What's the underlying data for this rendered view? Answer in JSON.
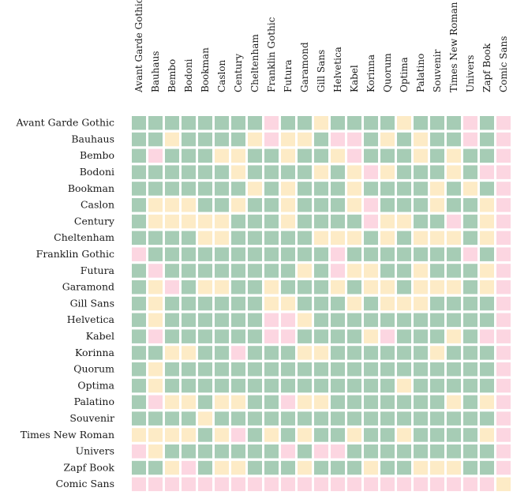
{
  "chart_data": {
    "type": "heatmap",
    "title": "",
    "xlabel": "",
    "ylabel": "",
    "fonts": [
      "Avant Garde Gothic",
      "Bauhaus",
      "Bembo",
      "Bodoni",
      "Bookman",
      "Caslon",
      "Century",
      "Cheltenham",
      "Franklin Gothic",
      "Futura",
      "Garamond",
      "Gill Sans",
      "Helvetica",
      "Kabel",
      "Korinna",
      "Quorum",
      "Optima",
      "Palatino",
      "Souvenir",
      "Times New Roman",
      "Univers",
      "Zapf Book",
      "Comic Sans"
    ],
    "colors": {
      "G": "#a6ccb5",
      "Y": "#fdebc6",
      "P": "#fcd6e1"
    },
    "legend_meaning": {
      "G": "green",
      "Y": "yellow",
      "P": "pink"
    },
    "cells": [
      "GGGGGGGGPGGYGGGGYGGGPGP",
      "GGYGGGGYPYYGPPGYGYGGPGP",
      "GPGGGYYGGYGGYPGGGYGYGGP",
      "GGGGGGYGGGGYGYPYGGGYGPP",
      "GGGGGGGYGYGGGYGGGGYGYGP",
      "GYYYGGYGGYGGGYPGGGYGGYP",
      "GYYYYYGGGYGGGGPYYGGPGYP",
      "GGGGYYGGGGGYYYGYGYYYGYP",
      "PGGGGGGGGGGGPGGGGGGGPGP",
      "GPGGGGGGGGYGPYYGGYGGGYP",
      "GYPGYYGGYGGGYGYYGYYYGYP",
      "GYGGGGGGYYGGGYGYYYGGGGP",
      "GYGGGGGGPPYGGGGGGGGGGGP",
      "GPGGGGGGPPGGGGYPGGGYGPP",
      "GGYYGGPGGGYYGGGGGGYGGGP",
      "GYGGGGGGGGGGGGGGGGGGGGP",
      "GYGGGGGGGGGGGGGGYGGGGGP",
      "GPYYGYYGGPYYGGGGGGGYGYP",
      "GGGGYGGGGGGGGGGGGGGGGGP",
      "YYYYGYPGYGYGGYGGYGGGGYP",
      "PYGGGGGGGPGPPGGGGGGGGGP",
      "GGYPGYYGGGYGGGYGGYYYGGP",
      "PPPPPPPPPPPPPPPPPPPPPPY"
    ]
  }
}
